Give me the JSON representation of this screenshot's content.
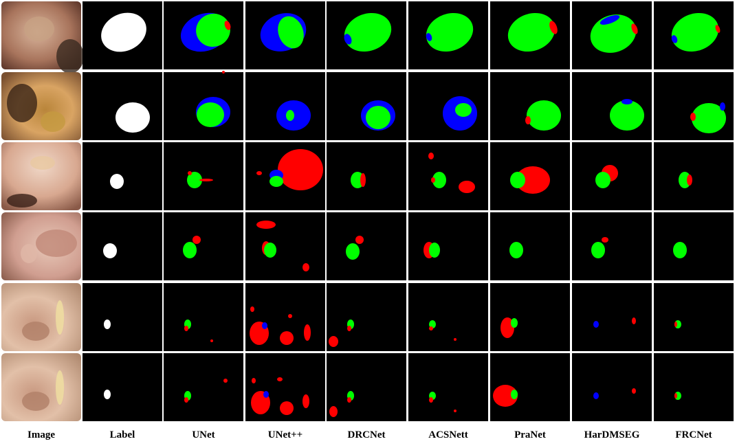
{
  "figure": {
    "columns": [
      "Image",
      "Label",
      "UNet",
      "UNet++",
      "DRCNet",
      "ACSNett",
      "PraNet",
      "HarDMSEG",
      "FRCNet"
    ]
  }
}
